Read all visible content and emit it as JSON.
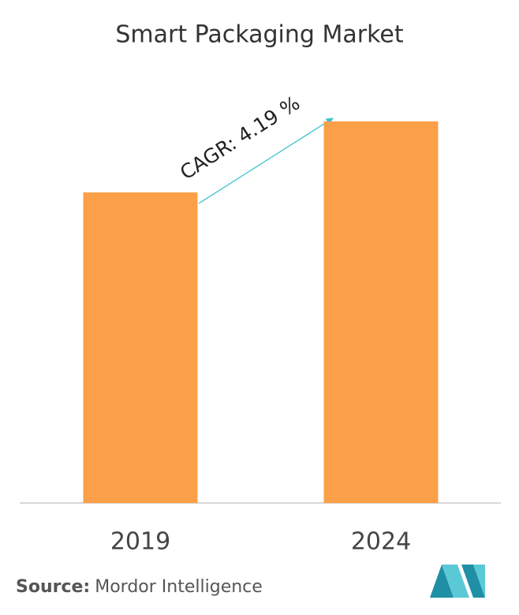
{
  "chart_data": {
    "type": "bar",
    "title": "Smart Packaging Market",
    "categories": [
      "2019",
      "2024"
    ],
    "values": [
      81.4,
      100
    ],
    "color": "#fba048",
    "ylim": [
      0,
      100
    ],
    "annotation": "CAGR: 4.19 %"
  },
  "source": {
    "label": "Source:",
    "text": "Mordor Intelligence"
  }
}
